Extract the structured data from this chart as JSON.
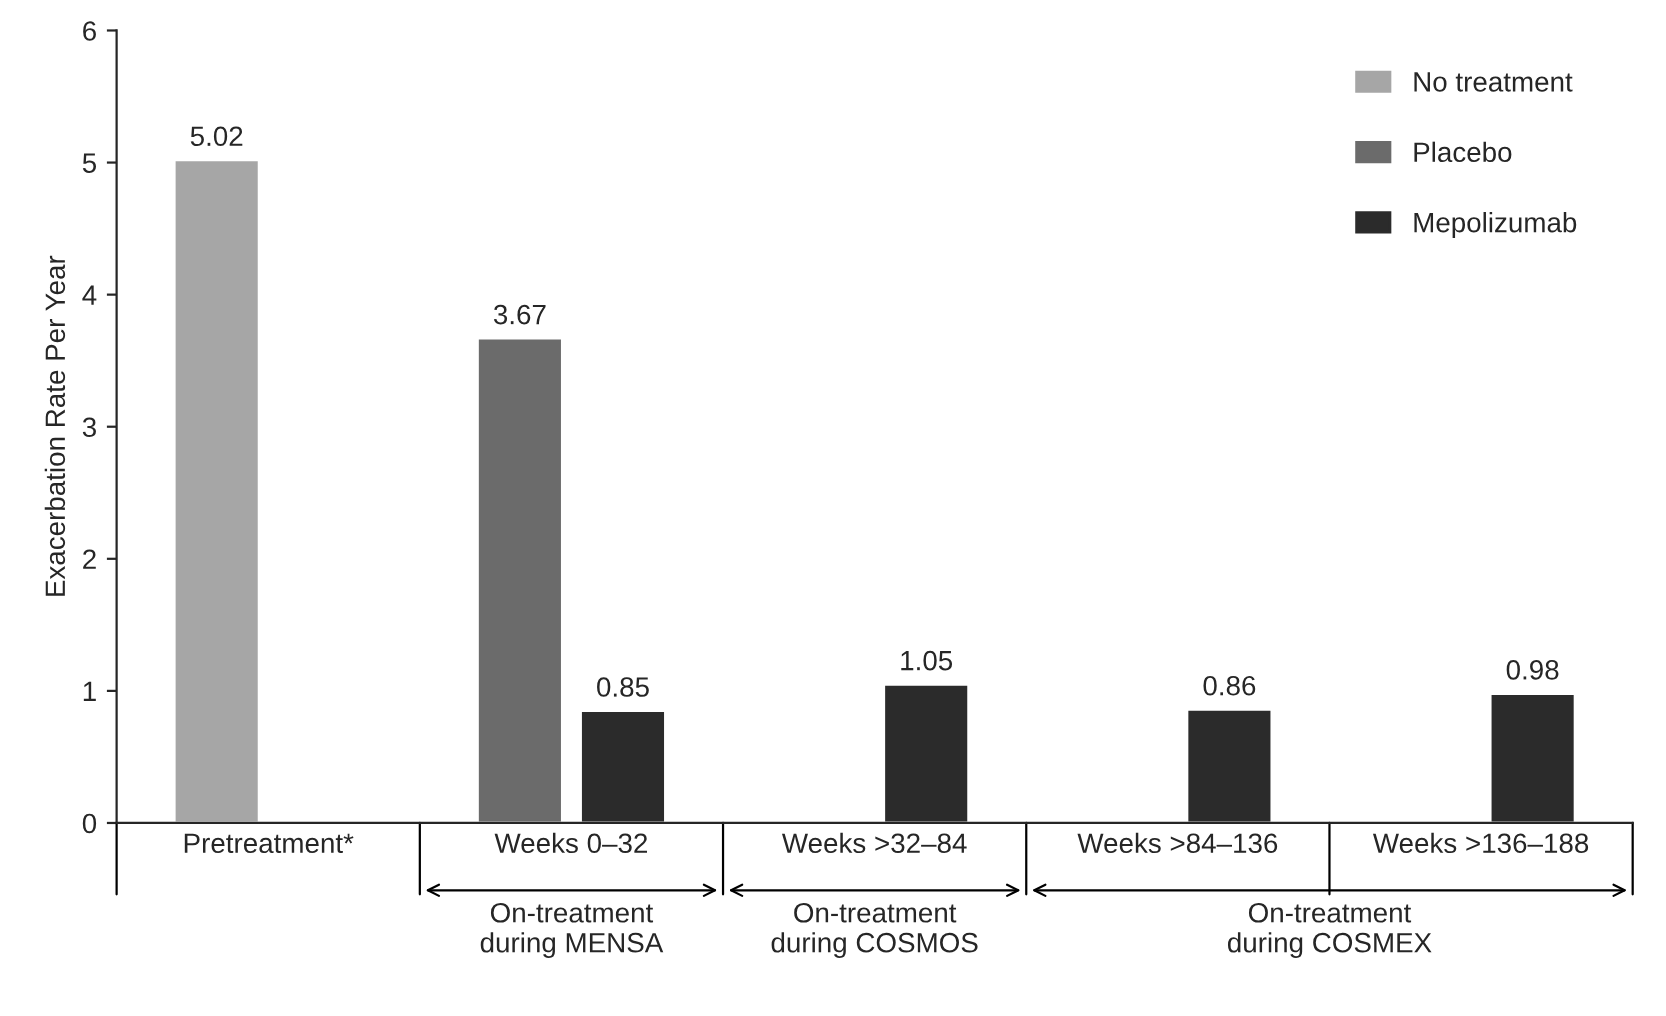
{
  "chart_data": {
    "type": "bar",
    "ylabel": "Exacerbation Rate Per Year",
    "categories": [
      "Pretreatment*",
      "Weeks 0–32",
      "Weeks >32–84",
      "Weeks >84–136",
      "Weeks >136–188"
    ],
    "series": [
      {
        "name": "No treatment",
        "color": "#a6a6a6",
        "values": [
          5.02,
          null,
          null,
          null,
          null
        ]
      },
      {
        "name": "Placebo",
        "color": "#6b6b6b",
        "values": [
          null,
          3.67,
          null,
          null,
          null
        ]
      },
      {
        "name": "Mepolizumab",
        "color": "#2b2b2b",
        "values": [
          null,
          0.85,
          1.05,
          0.86,
          0.98
        ]
      }
    ],
    "ylim": [
      0,
      6
    ],
    "yticks": [
      0,
      1,
      2,
      3,
      4,
      5,
      6
    ],
    "data_labels": true,
    "legend": "top right",
    "grid": false,
    "annotations": [
      "On-treatment\nduring MENSA",
      "On-treatment\nduring COSMOS",
      "On-treatment\nduring COSMEX"
    ]
  }
}
